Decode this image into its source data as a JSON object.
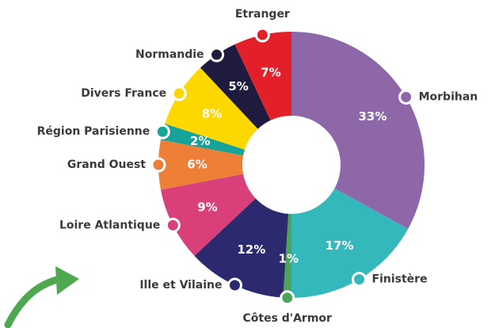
{
  "chart_data": {
    "type": "donut",
    "categories": [
      "Morbihan",
      "Finistère",
      "Côtes d'Armor",
      "Ille et Vilaine",
      "Loire Atlantique",
      "Grand Ouest",
      "Région Parisienne",
      "Divers France",
      "Normandie",
      "Etranger"
    ],
    "values": [
      33,
      17,
      1,
      12,
      9,
      6,
      2,
      8,
      5,
      7
    ],
    "value_labels": [
      "33%",
      "17%",
      "1%",
      "12%",
      "9%",
      "6%",
      "2%",
      "8%",
      "5%",
      "7%"
    ],
    "colors": [
      "#8e67a8",
      "#35b8bb",
      "#4aa55a",
      "#2b2a6e",
      "#d9407a",
      "#ee7f36",
      "#17a39a",
      "#fcd800",
      "#1f1b3f",
      "#e3202a"
    ]
  }
}
